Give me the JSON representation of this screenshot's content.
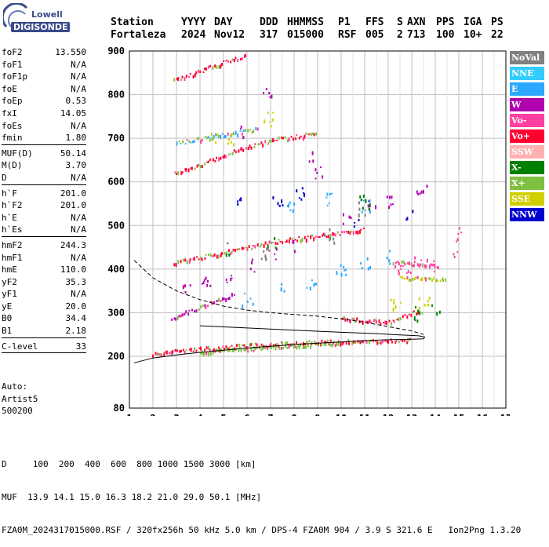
{
  "logo": {
    "line1": "Lowell",
    "line2": "DIGISONDE"
  },
  "header": {
    "labels": [
      "Station",
      "YYYY",
      "DAY",
      "DDD",
      "HHMMSS",
      "P1",
      "FFS",
      "S",
      "AXN",
      "PPS",
      "IGA",
      "PS"
    ],
    "values": [
      "Fortaleza",
      "2024",
      "Nov12",
      "317",
      "015000",
      "RSF",
      "005",
      "2",
      "713",
      "100",
      "10+",
      "22"
    ]
  },
  "params_groups": [
    [
      {
        "k": "foF2",
        "v": "13.550"
      },
      {
        "k": "foF1",
        "v": "N/A"
      },
      {
        "k": "foF1p",
        "v": "N/A"
      },
      {
        "k": "foE",
        "v": "N/A"
      },
      {
        "k": "foEp",
        "v": "0.53"
      },
      {
        "k": "fxI",
        "v": "14.05"
      },
      {
        "k": "foEs",
        "v": "N/A"
      },
      {
        "k": "fmin",
        "v": "1.80"
      }
    ],
    [
      {
        "k": "MUF(D)",
        "v": "50.14"
      },
      {
        "k": "M(D)",
        "v": "3.70"
      },
      {
        "k": "D",
        "v": "N/A"
      }
    ],
    [
      {
        "k": "h`F",
        "v": "201.0"
      },
      {
        "k": "h`F2",
        "v": "201.0"
      },
      {
        "k": "h`E",
        "v": "N/A"
      },
      {
        "k": "h`Es",
        "v": "N/A"
      }
    ],
    [
      {
        "k": "hmF2",
        "v": "244.3"
      },
      {
        "k": "hmF1",
        "v": "N/A"
      },
      {
        "k": "hmE",
        "v": "110.0"
      },
      {
        "k": "yF2",
        "v": "35.3"
      },
      {
        "k": "yF1",
        "v": "N/A"
      },
      {
        "k": "yE",
        "v": "20.0"
      },
      {
        "k": "B0",
        "v": "34.4"
      },
      {
        "k": "B1",
        "v": "2.18"
      }
    ],
    [
      {
        "k": "C-level",
        "v": "33"
      }
    ]
  ],
  "auto": {
    "label": "Auto:",
    "program": "Artist5",
    "version": "500200"
  },
  "legend": [
    {
      "label": "NoVal",
      "color": "#808080"
    },
    {
      "label": "NNE",
      "color": "#33ccff"
    },
    {
      "label": "E",
      "color": "#2aa8ff"
    },
    {
      "label": "W",
      "color": "#b000b0"
    },
    {
      "label": "Vo-",
      "color": "#ff40a0"
    },
    {
      "label": "Vo+",
      "color": "#ff0030"
    },
    {
      "label": "SSW",
      "color": "#ffb0b0"
    },
    {
      "label": "X-",
      "color": "#008000"
    },
    {
      "label": "X+",
      "color": "#80c040"
    },
    {
      "label": "SSE",
      "color": "#d0d000"
    },
    {
      "label": "NNW",
      "color": "#0000d0"
    }
  ],
  "footer": {
    "line1": "D     100  200  400  600  800 1000 1500 3000 [km]",
    "line2": "MUF  13.9 14.1 15.0 16.3 18.2 21.0 29.0 50.1 [MHz]",
    "line3": "FZA0M_2024317015000.RSF / 320fx256h 50 kHz 5.0 km / DPS-4 FZA0M 904 / 3.9 S 321.6 E   Ion2Png 1.3.20"
  },
  "chart_data": {
    "type": "scatter",
    "xlim": [
      1,
      17
    ],
    "ylim": [
      80,
      900
    ],
    "xticks": [
      1,
      2,
      3,
      4,
      5,
      6,
      7,
      8,
      9,
      10,
      11,
      12,
      13,
      14,
      15,
      16,
      17
    ],
    "yticks": [
      80,
      200,
      300,
      400,
      500,
      600,
      700,
      800,
      900
    ],
    "grid": true,
    "profile_solid": [
      [
        1.2,
        185
      ],
      [
        2,
        196
      ],
      [
        3,
        203
      ],
      [
        4,
        209
      ],
      [
        5,
        214
      ],
      [
        6,
        219
      ],
      [
        7,
        223
      ],
      [
        8,
        227
      ],
      [
        9,
        230
      ],
      [
        10,
        233
      ],
      [
        11,
        236
      ],
      [
        12,
        238
      ],
      [
        13,
        239
      ],
      [
        13.5,
        240
      ],
      [
        13.55,
        244
      ],
      [
        13.3,
        247
      ],
      [
        12.5,
        249
      ],
      [
        11.5,
        252
      ],
      [
        10,
        255
      ],
      [
        8,
        260
      ],
      [
        6,
        265
      ],
      [
        4,
        270
      ]
    ],
    "profile_dashed": [
      [
        1.2,
        420
      ],
      [
        2,
        380
      ],
      [
        3,
        350
      ],
      [
        4,
        330
      ],
      [
        5,
        315
      ],
      [
        6,
        306
      ],
      [
        7,
        300
      ],
      [
        8,
        296
      ],
      [
        9,
        292
      ],
      [
        10,
        286
      ],
      [
        11,
        278
      ],
      [
        12,
        268
      ],
      [
        13,
        258
      ],
      [
        13.5,
        250
      ]
    ],
    "traces": [
      {
        "color": "#ff0030",
        "points": [
          [
            2,
            208
          ],
          [
            3,
            214
          ],
          [
            4,
            218
          ],
          [
            5,
            222
          ],
          [
            6,
            226
          ],
          [
            7,
            229
          ],
          [
            8,
            232
          ],
          [
            9,
            234
          ],
          [
            10,
            235
          ],
          [
            11,
            236
          ],
          [
            12,
            238
          ],
          [
            13,
            240
          ]
        ]
      },
      {
        "color": "#ff0030",
        "points": [
          [
            2.9,
            416
          ],
          [
            4,
            428
          ],
          [
            5,
            440
          ],
          [
            6,
            451
          ],
          [
            7,
            462
          ],
          [
            8,
            470
          ],
          [
            9,
            478
          ],
          [
            10,
            485
          ],
          [
            11,
            494
          ]
        ]
      },
      {
        "color": "#ff0030",
        "points": [
          [
            2.9,
            620
          ],
          [
            4,
            641
          ],
          [
            5,
            662
          ],
          [
            6,
            682
          ],
          [
            7,
            697
          ],
          [
            8,
            705
          ],
          [
            9,
            712
          ]
        ]
      },
      {
        "color": "#ff0030",
        "points": [
          [
            2.9,
            834
          ],
          [
            4,
            855
          ],
          [
            5,
            876
          ],
          [
            6,
            893
          ]
        ]
      },
      {
        "color": "#ff0030",
        "points": [
          [
            10,
            290
          ],
          [
            11,
            285
          ],
          [
            12,
            280
          ],
          [
            12.5,
            290
          ],
          [
            13,
            300
          ],
          [
            13.5,
            305
          ]
        ]
      },
      {
        "color": "#b000b0",
        "points": [
          [
            2.8,
            285
          ],
          [
            3.2,
            298
          ],
          [
            3.8,
            310
          ],
          [
            4.5,
            325
          ],
          [
            5,
            335
          ],
          [
            5.5,
            345
          ]
        ]
      },
      {
        "color": "#2aa8ff",
        "points": [
          [
            3,
            690
          ],
          [
            4,
            700
          ],
          [
            5,
            710
          ],
          [
            6,
            718
          ],
          [
            6.5,
            725
          ]
        ]
      },
      {
        "color": "#d0d000",
        "points": [
          [
            12.5,
            380
          ],
          [
            13,
            378
          ],
          [
            13.5,
            382
          ],
          [
            14,
            376
          ],
          [
            14.5,
            380
          ]
        ]
      },
      {
        "color": "#ff40a0",
        "points": [
          [
            12.2,
            420
          ],
          [
            12.7,
            418
          ],
          [
            13.2,
            415
          ],
          [
            13.7,
            412
          ],
          [
            14.2,
            408
          ]
        ]
      },
      {
        "color": "#80c040",
        "points": [
          [
            4,
            212
          ],
          [
            6,
            218
          ],
          [
            8,
            226
          ],
          [
            10,
            232
          ]
        ]
      }
    ],
    "scatter_points": [
      {
        "color": "#b000b0",
        "points": [
          [
            3.4,
            360
          ],
          [
            4.2,
            370
          ],
          [
            5.1,
            380
          ],
          [
            6.1,
            410
          ],
          [
            7,
            440
          ],
          [
            8.1,
            455
          ],
          [
            10.2,
            520
          ],
          [
            11.3,
            545
          ],
          [
            12.1,
            553
          ],
          [
            13.4,
            590
          ],
          [
            9.1,
            620
          ],
          [
            8.6,
            660
          ],
          [
            5.6,
            720
          ],
          [
            6.8,
            800
          ]
        ]
      },
      {
        "color": "#2aa8ff",
        "points": [
          [
            6,
            330
          ],
          [
            7.5,
            355
          ],
          [
            8.7,
            365
          ],
          [
            10,
            398
          ],
          [
            11,
            415
          ],
          [
            12,
            430
          ],
          [
            7.8,
            545
          ],
          [
            9.5,
            560
          ],
          [
            11,
            545
          ]
        ]
      },
      {
        "color": "#0000d0",
        "points": [
          [
            5.5,
            555
          ],
          [
            7.3,
            560
          ],
          [
            8.2,
            575
          ],
          [
            10.5,
            500
          ],
          [
            12.8,
            520
          ]
        ]
      },
      {
        "color": "#ff40a0",
        "points": [
          [
            12.4,
            405
          ],
          [
            12.9,
            395
          ],
          [
            13.2,
            425
          ],
          [
            13.8,
            410
          ],
          [
            14.8,
            440
          ],
          [
            15.1,
            480
          ]
        ]
      },
      {
        "color": "#008000",
        "points": [
          [
            5,
            448
          ],
          [
            7,
            465
          ],
          [
            11,
            555
          ],
          [
            13.2,
            300
          ],
          [
            14,
            305
          ]
        ]
      },
      {
        "color": "#d0d000",
        "points": [
          [
            4.5,
            705
          ],
          [
            5.2,
            700
          ],
          [
            6.9,
            745
          ],
          [
            13.5,
            325
          ],
          [
            12.3,
            325
          ]
        ]
      },
      {
        "color": "#808080",
        "points": [
          [
            6.8,
            440
          ],
          [
            9.5,
            478
          ],
          [
            10.8,
            540
          ]
        ]
      }
    ]
  }
}
